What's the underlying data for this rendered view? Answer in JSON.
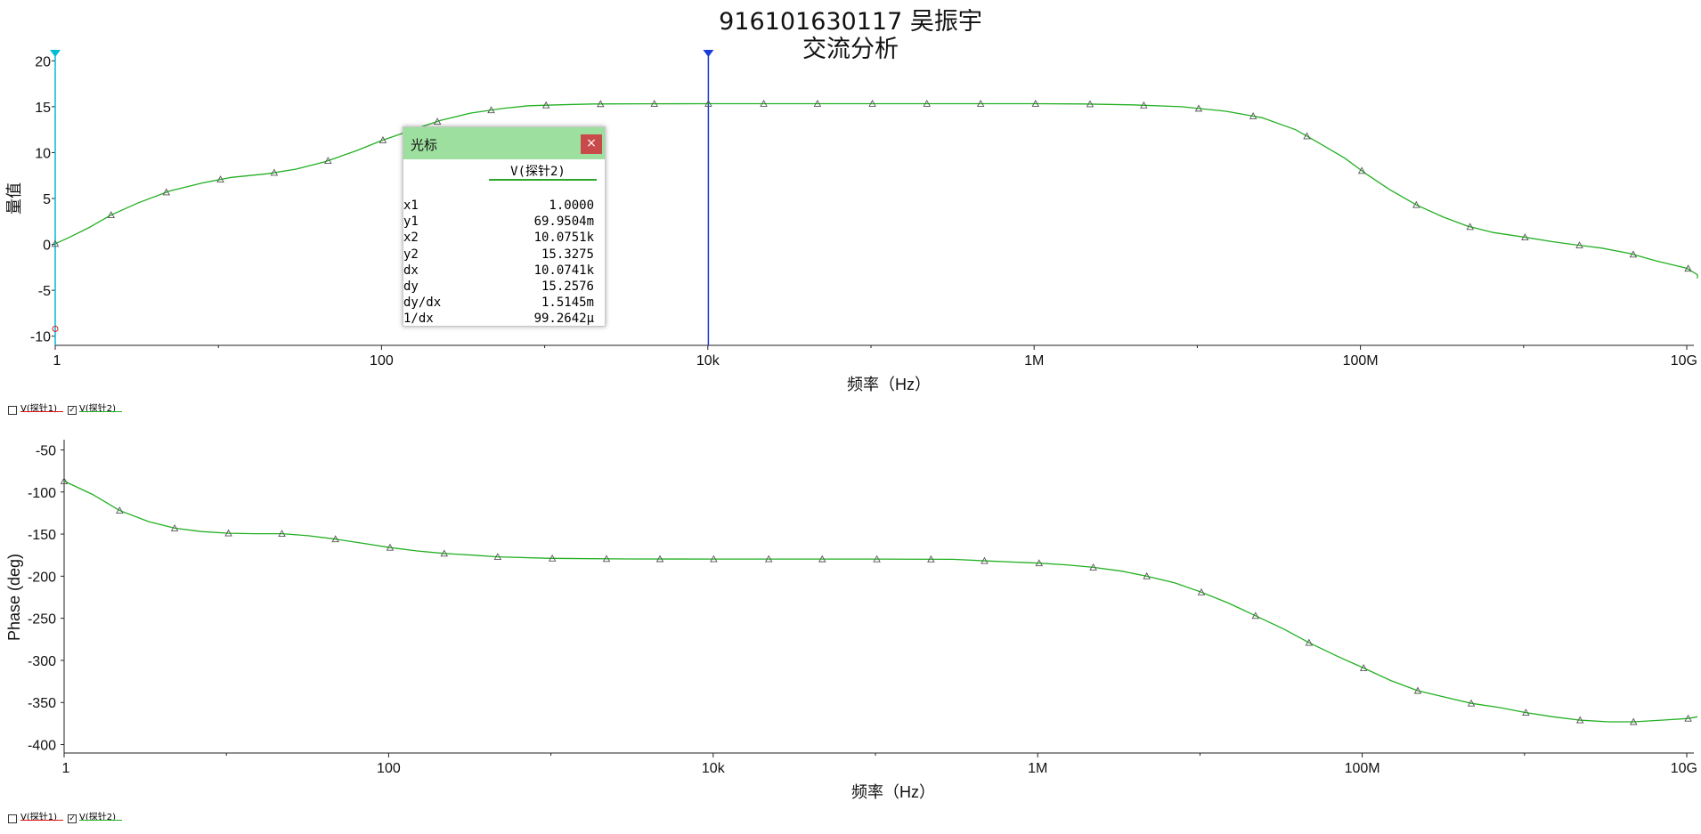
{
  "title": "916101630117 吴振宇",
  "subtitle": "交流分析",
  "colors": {
    "trace1": "#e01010",
    "trace2": "#22b022",
    "cursor1": "#00bcd4",
    "cursor2": "#1a3ad8",
    "cursor_window_header": "#9ddf9f",
    "close_button": "#c94a4a"
  },
  "legend": [
    {
      "label": "V(探针1)",
      "checked": false,
      "color": "#e01010"
    },
    {
      "label": "V(探针2)",
      "checked": true,
      "color": "#22b022"
    }
  ],
  "cursor_window": {
    "title": "光标",
    "close_label": "×",
    "trace": "V(探针2)",
    "rows": [
      {
        "key": "x1",
        "value": "1.0000"
      },
      {
        "key": "y1",
        "value": "69.9504m"
      },
      {
        "key": "x2",
        "value": "10.0751k"
      },
      {
        "key": "y2",
        "value": "15.3275"
      },
      {
        "key": "dx",
        "value": "10.0741k"
      },
      {
        "key": "dy",
        "value": "15.2576"
      },
      {
        "key": "dy/dx",
        "value": "1.5145m"
      },
      {
        "key": "1/dx",
        "value": "99.2642μ"
      }
    ]
  },
  "chart_data": [
    {
      "type": "line",
      "title": "916101630117 吴振宇",
      "subtitle": "交流分析",
      "xlabel": "频率（Hz）",
      "ylabel": "量值",
      "x_scale": "log",
      "xlim": [
        1,
        10000000000
      ],
      "ylim": [
        -11,
        21
      ],
      "x_ticks": [
        {
          "value": 1,
          "label": "1"
        },
        {
          "value": 100,
          "label": "100"
        },
        {
          "value": 10000,
          "label": "10k"
        },
        {
          "value": 1000000,
          "label": "1M"
        },
        {
          "value": 100000000,
          "label": "100M"
        },
        {
          "value": 10000000000,
          "label": "10G"
        }
      ],
      "y_ticks": [
        {
          "value": 20,
          "label": "20"
        },
        {
          "value": 15,
          "label": "15"
        },
        {
          "value": 10,
          "label": "10"
        },
        {
          "value": 5,
          "label": "5"
        },
        {
          "value": 0,
          "label": "0"
        },
        {
          "value": -5,
          "label": "-5"
        },
        {
          "value": -10,
          "label": "-10"
        }
      ],
      "cursors": [
        {
          "name": "cursor-1",
          "x": 1,
          "color": "#00bcd4"
        },
        {
          "name": "cursor-2",
          "x": 10075.1,
          "color": "#1a3ad8"
        }
      ],
      "series": [
        {
          "name": "V(探针2)",
          "color": "#22b022",
          "points": [
            [
              1,
              0.07
            ],
            [
              1.2,
              0.7
            ],
            [
              1.6,
              1.8
            ],
            [
              2.2,
              3.2
            ],
            [
              3.2,
              4.5
            ],
            [
              5,
              5.8
            ],
            [
              8,
              6.7
            ],
            [
              12,
              7.3
            ],
            [
              20,
              7.7
            ],
            [
              30,
              8.2
            ],
            [
              45,
              9.0
            ],
            [
              70,
              10.2
            ],
            [
              100,
              11.3
            ],
            [
              150,
              12.4
            ],
            [
              230,
              13.5
            ],
            [
              350,
              14.3
            ],
            [
              550,
              14.8
            ],
            [
              800,
              15.1
            ],
            [
              1200,
              15.2
            ],
            [
              2000,
              15.3
            ],
            [
              4000,
              15.32
            ],
            [
              10075,
              15.33
            ],
            [
              30000,
              15.33
            ],
            [
              100000,
              15.33
            ],
            [
              500000,
              15.33
            ],
            [
              1000000,
              15.33
            ],
            [
              2000000,
              15.3
            ],
            [
              4000000,
              15.2
            ],
            [
              8000000,
              15.0
            ],
            [
              15000000,
              14.5
            ],
            [
              25000000,
              13.8
            ],
            [
              40000000,
              12.5
            ],
            [
              55000000,
              11.1
            ],
            [
              80000000,
              9.4
            ],
            [
              110000000,
              7.6
            ],
            [
              150000000,
              6.0
            ],
            [
              220000000,
              4.3
            ],
            [
              320000000,
              3.0
            ],
            [
              450000000,
              2.0
            ],
            [
              650000000,
              1.3
            ],
            [
              1000000000,
              0.8
            ],
            [
              1500000000,
              0.3
            ],
            [
              2000000000,
              0.0
            ],
            [
              3000000000,
              -0.4
            ],
            [
              4500000000,
              -1.0
            ],
            [
              6500000000,
              -1.8
            ],
            [
              10000000000,
              -2.6
            ],
            [
              15000000000,
              -3.3
            ],
            [
              25000000000,
              -3.7
            ]
          ],
          "markers_x": [
            1,
            2.2,
            4.8,
            10.3,
            22,
            47,
            102,
            220,
            470,
            1020,
            2200,
            4700,
            10075,
            22000,
            47000,
            102000,
            220000,
            470000,
            1020000,
            2200000,
            4700000,
            10200000,
            22000000,
            47000000,
            102000000,
            220000000,
            470000000,
            1020000000,
            2200000000,
            4700000000,
            10200000000,
            22000000000
          ]
        }
      ],
      "markers": [
        {
          "series": "V(探针1)",
          "x": 1,
          "y": -9.2,
          "color": "#e01010"
        }
      ]
    },
    {
      "type": "line",
      "xlabel": "频率（Hz）",
      "ylabel": "Phase (deg)",
      "x_scale": "log",
      "xlim": [
        1,
        10000000000
      ],
      "ylim": [
        -410,
        -40
      ],
      "x_ticks": [
        {
          "value": 1,
          "label": "1"
        },
        {
          "value": 100,
          "label": "100"
        },
        {
          "value": 10000,
          "label": "10k"
        },
        {
          "value": 1000000,
          "label": "1M"
        },
        {
          "value": 100000000,
          "label": "100M"
        },
        {
          "value": 10000000000,
          "label": "10G"
        }
      ],
      "y_ticks": [
        {
          "value": -50,
          "label": "-50"
        },
        {
          "value": -100,
          "label": "-100"
        },
        {
          "value": -150,
          "label": "-150"
        },
        {
          "value": -200,
          "label": "-200"
        },
        {
          "value": -250,
          "label": "-250"
        },
        {
          "value": -300,
          "label": "-300"
        },
        {
          "value": -350,
          "label": "-350"
        },
        {
          "value": -400,
          "label": "-400"
        }
      ],
      "series": [
        {
          "name": "V(探针2)",
          "color": "#22b022",
          "points": [
            [
              1,
              -87
            ],
            [
              1.5,
              -103
            ],
            [
              2.2,
              -122
            ],
            [
              3.3,
              -135
            ],
            [
              4.8,
              -143
            ],
            [
              7,
              -147
            ],
            [
              10.3,
              -149
            ],
            [
              15,
              -149.5
            ],
            [
              22,
              -149.5
            ],
            [
              32,
              -152
            ],
            [
              47,
              -156
            ],
            [
              70,
              -161
            ],
            [
              102,
              -166
            ],
            [
              150,
              -170
            ],
            [
              220,
              -173
            ],
            [
              330,
              -175
            ],
            [
              470,
              -177
            ],
            [
              1000,
              -178.8
            ],
            [
              3000,
              -179.5
            ],
            [
              10000,
              -179.6
            ],
            [
              100000,
              -179.7
            ],
            [
              300000,
              -180
            ],
            [
              500000,
              -182
            ],
            [
              1020000,
              -184.5
            ],
            [
              1500000,
              -186.5
            ],
            [
              2200000,
              -189.5
            ],
            [
              3300000,
              -194
            ],
            [
              4700000,
              -200
            ],
            [
              7000000,
              -208
            ],
            [
              10200000,
              -219
            ],
            [
              15000000,
              -232
            ],
            [
              22000000,
              -247
            ],
            [
              33000000,
              -263
            ],
            [
              47000000,
              -279
            ],
            [
              70000000,
              -295
            ],
            [
              102000000,
              -309
            ],
            [
              150000000,
              -324
            ],
            [
              220000000,
              -336
            ],
            [
              330000000,
              -344
            ],
            [
              470000000,
              -351
            ],
            [
              700000000,
              -356
            ],
            [
              1020000000,
              -362
            ],
            [
              1500000000,
              -367
            ],
            [
              2200000000,
              -371
            ],
            [
              3300000000,
              -373
            ],
            [
              4700000000,
              -373
            ],
            [
              7000000000,
              -371
            ],
            [
              10200000000,
              -369
            ],
            [
              15000000000,
              -367
            ]
          ],
          "markers_x": [
            1,
            2.2,
            4.8,
            10.3,
            22,
            47,
            102,
            220,
            470,
            1020,
            2200,
            4700,
            10075,
            22000,
            47000,
            102000,
            220000,
            470000,
            1020000,
            2200000,
            4700000,
            10200000,
            22000000,
            47000000,
            102000000,
            220000000,
            470000000,
            1020000000,
            2200000000,
            4700000000,
            10200000000
          ]
        }
      ]
    }
  ]
}
